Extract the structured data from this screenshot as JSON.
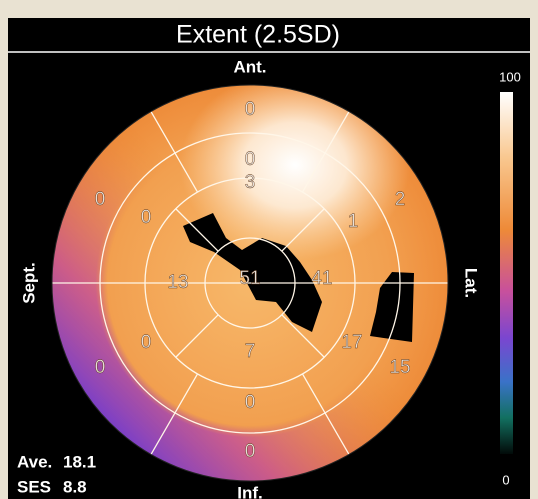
{
  "title": "Extent (2.5SD)",
  "orientation": {
    "anterior": "Ant.",
    "inferior": "Inf.",
    "septal": "Sept.",
    "lateral": "Lat."
  },
  "segments": {
    "apex": 51,
    "apical": {
      "anterior": 3,
      "lateral": 41,
      "inferior": 7,
      "septal": 13
    },
    "mid": {
      "anterior": 0,
      "anterolateral": 1,
      "inferolateral": 17,
      "inferior": 0,
      "inferoseptal": 0,
      "anteroseptal": 0
    },
    "basal": {
      "anterior": 0,
      "anterolateral": 2,
      "inferolateral": 15,
      "inferior": 0,
      "inferoseptal": 0,
      "anteroseptal": 0
    }
  },
  "scale": {
    "max": 100,
    "min": 0
  },
  "stats": {
    "average_label": "Ave.",
    "average": 18.1,
    "ses_label": "SES",
    "ses": 8.8
  }
}
